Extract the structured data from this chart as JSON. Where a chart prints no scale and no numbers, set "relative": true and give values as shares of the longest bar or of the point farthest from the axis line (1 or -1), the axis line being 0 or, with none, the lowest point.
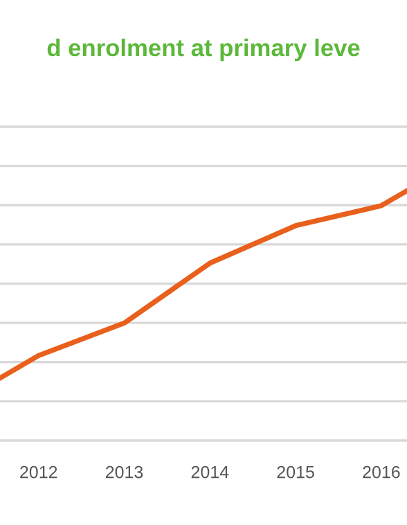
{
  "chart_data": {
    "type": "line",
    "title": "d enrolment at primary leve",
    "relative": true,
    "x": [
      2011.55,
      2012,
      2013,
      2014,
      2015,
      2016,
      2016.3
    ],
    "values": [
      0.25,
      0.34,
      0.47,
      0.71,
      0.86,
      0.94,
      1.0
    ],
    "color": "#e8601c",
    "xlim": [
      2011.55,
      2016.3
    ],
    "xticks": [
      2012,
      2013,
      2014,
      2015,
      2016
    ],
    "grid": "y",
    "marker": "none",
    "line_style": "solid",
    "legend": false,
    "tick_labels": "x"
  }
}
